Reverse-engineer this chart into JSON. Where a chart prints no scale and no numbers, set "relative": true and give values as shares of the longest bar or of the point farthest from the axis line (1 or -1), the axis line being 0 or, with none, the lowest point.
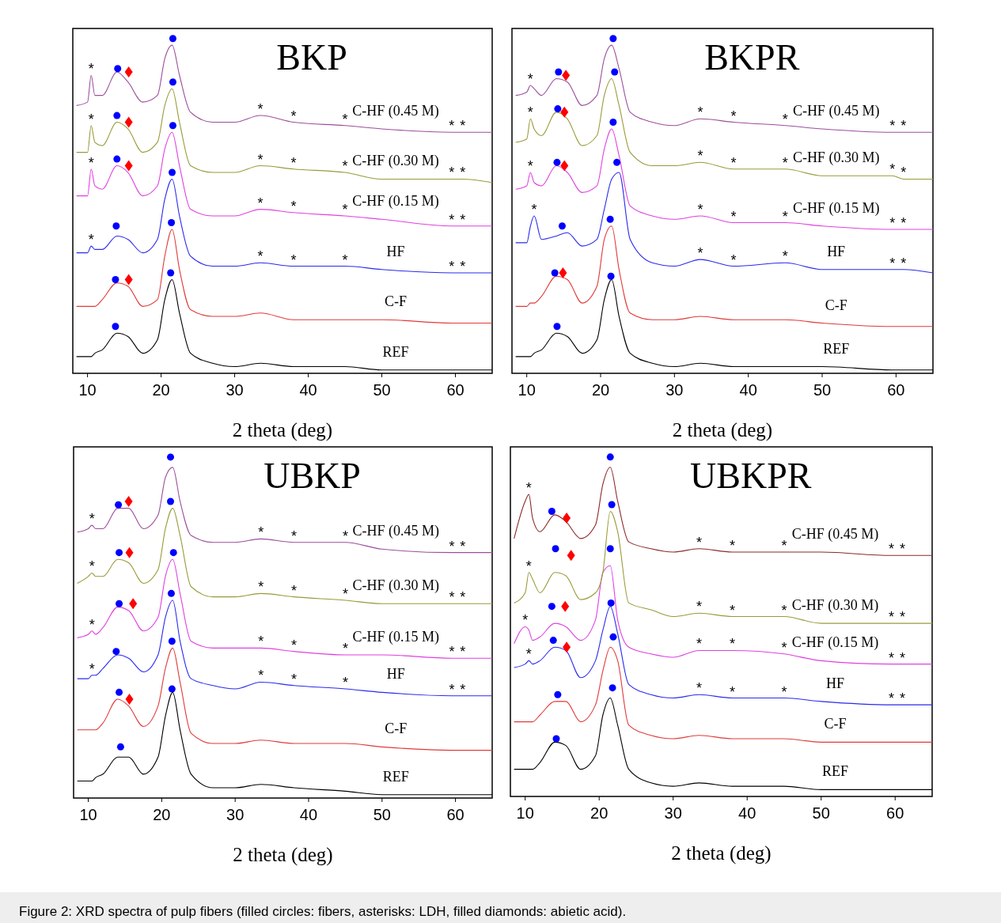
{
  "chart_data": [
    {
      "type": "line",
      "title": "BKP",
      "xlabel": "2 theta (deg)",
      "relative": true,
      "xlim": [
        8,
        65
      ],
      "xticks": [
        10,
        20,
        30,
        40,
        50,
        60
      ],
      "x": [
        8.5,
        10,
        10.5,
        11,
        12,
        14,
        15.5,
        17.5,
        19.5,
        20.5,
        21.5,
        22.5,
        24,
        27,
        30,
        33.5,
        38,
        45,
        50,
        59.5,
        61,
        65
      ],
      "series": [
        {
          "name": "REF",
          "color": "#000000",
          "values": [
            0.05,
            0.05,
            0.05,
            0.06,
            0.07,
            0.12,
            0.11,
            0.06,
            0.1,
            0.22,
            0.28,
            0.18,
            0.06,
            0.03,
            0.02,
            0.03,
            0.02,
            0.02,
            0.01,
            0.01,
            0.01,
            0.01
          ]
        },
        {
          "name": "C-F",
          "color": "#e03a3a",
          "values": [
            0.2,
            0.2,
            0.2,
            0.2,
            0.22,
            0.27,
            0.26,
            0.2,
            0.22,
            0.35,
            0.43,
            0.31,
            0.19,
            0.17,
            0.17,
            0.18,
            0.16,
            0.16,
            0.16,
            0.15,
            0.15,
            0.15
          ]
        },
        {
          "name": "HF",
          "color": "#2a2aee",
          "values": [
            0.36,
            0.36,
            0.38,
            0.37,
            0.37,
            0.41,
            0.4,
            0.36,
            0.4,
            0.52,
            0.58,
            0.47,
            0.35,
            0.32,
            0.32,
            0.33,
            0.32,
            0.32,
            0.31,
            0.3,
            0.3,
            0.3
          ]
        },
        {
          "name": "C-HF (0.15 M)",
          "color": "#e040e0",
          "values": [
            0.53,
            0.53,
            0.61,
            0.56,
            0.55,
            0.62,
            0.6,
            0.53,
            0.56,
            0.67,
            0.72,
            0.62,
            0.49,
            0.47,
            0.47,
            0.49,
            0.48,
            0.47,
            0.46,
            0.44,
            0.44,
            0.44
          ]
        },
        {
          "name": "C-HF (0.30 M)",
          "color": "#9a9a3a",
          "values": [
            0.66,
            0.66,
            0.74,
            0.69,
            0.68,
            0.75,
            0.73,
            0.66,
            0.69,
            0.8,
            0.85,
            0.75,
            0.62,
            0.6,
            0.6,
            0.62,
            0.61,
            0.6,
            0.58,
            0.58,
            0.58,
            0.57
          ]
        },
        {
          "name": "C-HF (0.45 M)",
          "color": "#9b4f9b",
          "values": [
            0.8,
            0.81,
            0.89,
            0.83,
            0.83,
            0.9,
            0.87,
            0.81,
            0.83,
            0.94,
            0.98,
            0.89,
            0.78,
            0.75,
            0.75,
            0.77,
            0.75,
            0.74,
            0.73,
            0.72,
            0.72,
            0.72
          ]
        },
        {
          "type": "scatter",
          "marker": "circle",
          "color": "#0000ff",
          "x": [
            14.1,
            21.6,
            21.6,
            14,
            21.6,
            14,
            21.5,
            13.9,
            21.4,
            13.8,
            21.3,
            13.8
          ],
          "values": [
            0.91,
            1.0,
            0.87,
            0.77,
            0.74,
            0.64,
            0.6,
            0.44,
            0.45,
            0.28,
            0.3,
            0.14
          ]
        },
        {
          "type": "scatter",
          "marker": "diamond",
          "color": "#ff0000",
          "x": [
            15.6,
            15.6,
            15.6,
            15.6
          ],
          "values": [
            0.9,
            0.75,
            0.62,
            0.28
          ]
        }
      ],
      "annotations": [
        {
          "text": "*",
          "x": 10.5,
          "y": 0.89
        },
        {
          "text": "*",
          "x": 33.5,
          "y": 0.77
        },
        {
          "text": "*",
          "x": 38,
          "y": 0.75
        },
        {
          "text": "*",
          "x": 45,
          "y": 0.74
        },
        {
          "text": "*",
          "x": 59.5,
          "y": 0.72
        },
        {
          "text": "*",
          "x": 61,
          "y": 0.72
        },
        {
          "text": "*",
          "x": 10.5,
          "y": 0.74
        },
        {
          "text": "*",
          "x": 33.5,
          "y": 0.62
        },
        {
          "text": "*",
          "x": 38,
          "y": 0.61
        },
        {
          "text": "*",
          "x": 45,
          "y": 0.6
        },
        {
          "text": "*",
          "x": 59.5,
          "y": 0.58
        },
        {
          "text": "*",
          "x": 61,
          "y": 0.58
        },
        {
          "text": "*",
          "x": 10.5,
          "y": 0.61
        },
        {
          "text": "*",
          "x": 33.5,
          "y": 0.49
        },
        {
          "text": "*",
          "x": 38,
          "y": 0.48
        },
        {
          "text": "*",
          "x": 45,
          "y": 0.47
        },
        {
          "text": "*",
          "x": 59.5,
          "y": 0.44
        },
        {
          "text": "*",
          "x": 61,
          "y": 0.44
        },
        {
          "text": "*",
          "x": 10.5,
          "y": 0.38
        },
        {
          "text": "*",
          "x": 33.5,
          "y": 0.33
        },
        {
          "text": "*",
          "x": 38,
          "y": 0.32
        },
        {
          "text": "*",
          "x": 45,
          "y": 0.32
        },
        {
          "text": "*",
          "x": 59.5,
          "y": 0.3
        },
        {
          "text": "*",
          "x": 61,
          "y": 0.3
        }
      ]
    },
    {
      "type": "line",
      "title": "BKPR",
      "xlabel": "2 theta (deg)",
      "relative": true,
      "xlim": [
        8,
        65
      ],
      "xticks": [
        10,
        20,
        30,
        40,
        50,
        60
      ],
      "x": [
        8.5,
        10,
        10.5,
        11,
        12,
        14,
        15.5,
        17.5,
        19.5,
        20.5,
        21.5,
        22.5,
        24,
        27,
        30,
        33.5,
        38,
        45,
        50,
        59.5,
        61,
        65
      ],
      "series": [
        {
          "name": "REF",
          "color": "#000000",
          "values": [
            0.05,
            0.05,
            0.05,
            0.06,
            0.07,
            0.12,
            0.11,
            0.06,
            0.1,
            0.22,
            0.28,
            0.17,
            0.06,
            0.03,
            0.02,
            0.03,
            0.02,
            0.02,
            0.02,
            0.01,
            0.01,
            0.01
          ]
        },
        {
          "name": "C-F",
          "color": "#e03a3a",
          "values": [
            0.2,
            0.2,
            0.21,
            0.21,
            0.23,
            0.29,
            0.28,
            0.21,
            0.26,
            0.4,
            0.44,
            0.31,
            0.18,
            0.16,
            0.16,
            0.17,
            0.16,
            0.16,
            0.15,
            0.14,
            0.14,
            0.14
          ]
        },
        {
          "name": "HF",
          "color": "#2a2aee",
          "values": [
            0.39,
            0.39,
            0.44,
            0.47,
            0.4,
            0.41,
            0.42,
            0.38,
            0.4,
            0.49,
            0.58,
            0.6,
            0.4,
            0.33,
            0.32,
            0.34,
            0.32,
            0.33,
            0.31,
            0.31,
            0.31,
            0.3
          ]
        },
        {
          "name": "C-HF (0.15 M)",
          "color": "#e040e0",
          "values": [
            0.55,
            0.56,
            0.6,
            0.57,
            0.56,
            0.62,
            0.6,
            0.54,
            0.56,
            0.67,
            0.73,
            0.65,
            0.5,
            0.47,
            0.46,
            0.47,
            0.45,
            0.45,
            0.44,
            0.43,
            0.43,
            0.43
          ]
        },
        {
          "name": "C-HF (0.30 M)",
          "color": "#9a9a3a",
          "values": [
            0.69,
            0.7,
            0.76,
            0.73,
            0.71,
            0.78,
            0.76,
            0.68,
            0.71,
            0.83,
            0.88,
            0.8,
            0.66,
            0.62,
            0.62,
            0.63,
            0.61,
            0.61,
            0.59,
            0.59,
            0.58,
            0.58
          ]
        },
        {
          "name": "C-HF (0.45 M)",
          "color": "#9b4f9b",
          "values": [
            0.83,
            0.84,
            0.86,
            0.85,
            0.83,
            0.88,
            0.87,
            0.8,
            0.83,
            0.94,
            0.98,
            0.91,
            0.78,
            0.75,
            0.74,
            0.76,
            0.75,
            0.74,
            0.73,
            0.72,
            0.72,
            0.72
          ]
        },
        {
          "type": "scatter",
          "marker": "circle",
          "color": "#0000ff",
          "x": [
            14.3,
            21.7,
            21.9,
            14.2,
            21.7,
            14.1,
            22.2,
            14.8,
            21.3,
            13.8,
            21.4,
            14.1
          ],
          "values": [
            0.9,
            1.0,
            0.9,
            0.79,
            0.75,
            0.63,
            0.63,
            0.44,
            0.46,
            0.3,
            0.29,
            0.14
          ]
        },
        {
          "type": "scatter",
          "marker": "diamond",
          "color": "#ff0000",
          "x": [
            15.3,
            15.1,
            15.1,
            14.9
          ],
          "values": [
            0.89,
            0.78,
            0.62,
            0.3
          ]
        }
      ],
      "annotations": [
        {
          "text": "*",
          "x": 10.5,
          "y": 0.86
        },
        {
          "text": "*",
          "x": 33.5,
          "y": 0.76
        },
        {
          "text": "*",
          "x": 38,
          "y": 0.75
        },
        {
          "text": "*",
          "x": 45,
          "y": 0.74
        },
        {
          "text": "*",
          "x": 59.5,
          "y": 0.72
        },
        {
          "text": "*",
          "x": 61,
          "y": 0.72
        },
        {
          "text": "*",
          "x": 10.5,
          "y": 0.76
        },
        {
          "text": "*",
          "x": 33.5,
          "y": 0.63
        },
        {
          "text": "*",
          "x": 38,
          "y": 0.61
        },
        {
          "text": "*",
          "x": 45,
          "y": 0.61
        },
        {
          "text": "*",
          "x": 59.5,
          "y": 0.59
        },
        {
          "text": "*",
          "x": 61,
          "y": 0.58
        },
        {
          "text": "*",
          "x": 10.5,
          "y": 0.6
        },
        {
          "text": "*",
          "x": 33.5,
          "y": 0.47
        },
        {
          "text": "*",
          "x": 38,
          "y": 0.45
        },
        {
          "text": "*",
          "x": 45,
          "y": 0.45
        },
        {
          "text": "*",
          "x": 59.5,
          "y": 0.43
        },
        {
          "text": "*",
          "x": 61,
          "y": 0.43
        },
        {
          "text": "*",
          "x": 11,
          "y": 0.47
        },
        {
          "text": "*",
          "x": 33.5,
          "y": 0.34
        },
        {
          "text": "*",
          "x": 38,
          "y": 0.32
        },
        {
          "text": "*",
          "x": 45,
          "y": 0.33
        },
        {
          "text": "*",
          "x": 59.5,
          "y": 0.31
        },
        {
          "text": "*",
          "x": 61,
          "y": 0.31
        }
      ]
    },
    {
      "type": "line",
      "title": "UBKP",
      "xlabel": "2 theta (deg)",
      "relative": true,
      "xlim": [
        8,
        65
      ],
      "xticks": [
        10,
        20,
        30,
        40,
        50,
        60
      ],
      "x": [
        8.5,
        10,
        10.5,
        11,
        12,
        14,
        15.5,
        17.5,
        19.5,
        20.5,
        21.5,
        22.5,
        24,
        27,
        30,
        33.5,
        38,
        45,
        50,
        59.5,
        61,
        65
      ],
      "series": [
        {
          "name": "REF",
          "color": "#000000",
          "values": [
            0.05,
            0.05,
            0.05,
            0.06,
            0.07,
            0.12,
            0.12,
            0.07,
            0.12,
            0.24,
            0.31,
            0.2,
            0.07,
            0.03,
            0.03,
            0.04,
            0.03,
            0.02,
            0.01,
            0.01,
            0.01,
            0.01
          ]
        },
        {
          "name": "C-F",
          "color": "#e03a3a",
          "values": [
            0.2,
            0.2,
            0.2,
            0.2,
            0.22,
            0.29,
            0.27,
            0.21,
            0.27,
            0.38,
            0.44,
            0.34,
            0.19,
            0.16,
            0.16,
            0.17,
            0.16,
            0.16,
            0.15,
            0.14,
            0.14,
            0.14
          ]
        },
        {
          "name": "HF",
          "color": "#2a2aee",
          "values": [
            0.35,
            0.35,
            0.36,
            0.36,
            0.38,
            0.42,
            0.41,
            0.37,
            0.42,
            0.53,
            0.58,
            0.46,
            0.35,
            0.33,
            0.32,
            0.34,
            0.33,
            0.32,
            0.31,
            0.3,
            0.3,
            0.3
          ]
        },
        {
          "name": "C-HF (0.15 M)",
          "color": "#e040e0",
          "values": [
            0.47,
            0.48,
            0.49,
            0.48,
            0.5,
            0.56,
            0.55,
            0.49,
            0.53,
            0.65,
            0.7,
            0.6,
            0.46,
            0.44,
            0.44,
            0.44,
            0.43,
            0.42,
            0.42,
            0.41,
            0.41,
            0.41
          ]
        },
        {
          "name": "C-HF (0.30 M)",
          "color": "#9a9a3a",
          "values": [
            0.63,
            0.65,
            0.66,
            0.65,
            0.65,
            0.7,
            0.69,
            0.63,
            0.67,
            0.79,
            0.85,
            0.77,
            0.62,
            0.59,
            0.59,
            0.6,
            0.59,
            0.58,
            0.57,
            0.57,
            0.57,
            0.57
          ]
        },
        {
          "name": "C-HF (0.45 M)",
          "color": "#9b4f9b",
          "values": [
            0.78,
            0.79,
            0.8,
            0.79,
            0.79,
            0.85,
            0.85,
            0.79,
            0.83,
            0.94,
            0.97,
            0.87,
            0.77,
            0.75,
            0.75,
            0.76,
            0.75,
            0.75,
            0.73,
            0.72,
            0.72,
            0.72
          ]
        },
        {
          "type": "scatter",
          "marker": "circle",
          "color": "#0000ff",
          "x": [
            21.2,
            14.1,
            21.2,
            14.2,
            21.6,
            14.2,
            21.3,
            13.8,
            21.4,
            14.2,
            21.4,
            14.4
          ],
          "values": [
            1.0,
            0.86,
            0.87,
            0.72,
            0.72,
            0.57,
            0.6,
            0.43,
            0.46,
            0.31,
            0.32,
            0.15
          ]
        },
        {
          "type": "scatter",
          "marker": "diamond",
          "color": "#ff0000",
          "x": [
            15.5,
            15.6,
            16.1,
            15.6
          ],
          "values": [
            0.87,
            0.72,
            0.57,
            0.29
          ]
        }
      ],
      "annotations": [
        {
          "text": "*",
          "x": 10.5,
          "y": 0.8
        },
        {
          "text": "*",
          "x": 33.5,
          "y": 0.76
        },
        {
          "text": "*",
          "x": 38,
          "y": 0.75
        },
        {
          "text": "*",
          "x": 45,
          "y": 0.75
        },
        {
          "text": "*",
          "x": 59.5,
          "y": 0.72
        },
        {
          "text": "*",
          "x": 61,
          "y": 0.72
        },
        {
          "text": "*",
          "x": 10.5,
          "y": 0.66
        },
        {
          "text": "*",
          "x": 33.5,
          "y": 0.6
        },
        {
          "text": "*",
          "x": 38,
          "y": 0.59
        },
        {
          "text": "*",
          "x": 45,
          "y": 0.58
        },
        {
          "text": "*",
          "x": 59.5,
          "y": 0.57
        },
        {
          "text": "*",
          "x": 61,
          "y": 0.57
        },
        {
          "text": "*",
          "x": 10.5,
          "y": 0.49
        },
        {
          "text": "*",
          "x": 33.5,
          "y": 0.44
        },
        {
          "text": "*",
          "x": 38,
          "y": 0.43
        },
        {
          "text": "*",
          "x": 45,
          "y": 0.42
        },
        {
          "text": "*",
          "x": 59.5,
          "y": 0.41
        },
        {
          "text": "*",
          "x": 61,
          "y": 0.41
        },
        {
          "text": "*",
          "x": 10.5,
          "y": 0.36
        },
        {
          "text": "*",
          "x": 33.5,
          "y": 0.34
        },
        {
          "text": "*",
          "x": 38,
          "y": 0.33
        },
        {
          "text": "*",
          "x": 45,
          "y": 0.32
        },
        {
          "text": "*",
          "x": 59.5,
          "y": 0.3
        },
        {
          "text": "*",
          "x": 61,
          "y": 0.3
        }
      ]
    },
    {
      "type": "line",
      "title": "UBKPR",
      "xlabel": "2 theta (deg)",
      "relative": true,
      "xlim": [
        8,
        65
      ],
      "xticks": [
        10,
        20,
        30,
        40,
        50,
        60
      ],
      "x": [
        8.5,
        10,
        10.5,
        11,
        12,
        14,
        15.5,
        17.5,
        19.5,
        20.5,
        21.5,
        22.5,
        24,
        27,
        30,
        33.5,
        38,
        45,
        50,
        59.5,
        61,
        65
      ],
      "series": [
        {
          "name": "REF",
          "color": "#000000",
          "values": [
            0.08,
            0.08,
            0.08,
            0.08,
            0.1,
            0.16,
            0.15,
            0.08,
            0.12,
            0.24,
            0.29,
            0.21,
            0.08,
            0.04,
            0.03,
            0.04,
            0.03,
            0.03,
            0.02,
            0.02,
            0.02,
            0.02
          ]
        },
        {
          "name": "C-F",
          "color": "#e03a3a",
          "values": [
            0.22,
            0.22,
            0.22,
            0.22,
            0.24,
            0.28,
            0.28,
            0.22,
            0.27,
            0.37,
            0.44,
            0.4,
            0.21,
            0.18,
            0.17,
            0.18,
            0.17,
            0.17,
            0.16,
            0.16,
            0.16,
            0.16
          ]
        },
        {
          "name": "HF",
          "color": "#2a2aee",
          "values": [
            0.38,
            0.39,
            0.4,
            0.39,
            0.4,
            0.44,
            0.43,
            0.35,
            0.4,
            0.49,
            0.56,
            0.48,
            0.33,
            0.3,
            0.29,
            0.3,
            0.29,
            0.29,
            0.28,
            0.27,
            0.27,
            0.27
          ]
        },
        {
          "name": "C-HF (0.15 M)",
          "color": "#e040e0",
          "values": [
            0.45,
            0.5,
            0.49,
            0.46,
            0.47,
            0.51,
            0.5,
            0.46,
            0.52,
            0.66,
            0.68,
            0.52,
            0.44,
            0.42,
            0.41,
            0.43,
            0.43,
            0.42,
            0.4,
            0.39,
            0.39,
            0.39
          ]
        },
        {
          "name": "C-HF (0.30 M)",
          "color": "#9a9a3a",
          "values": [
            0.57,
            0.6,
            0.66,
            0.64,
            0.6,
            0.66,
            0.65,
            0.58,
            0.6,
            0.66,
            0.84,
            0.78,
            0.57,
            0.55,
            0.53,
            0.54,
            0.53,
            0.53,
            0.51,
            0.51,
            0.51,
            0.51
          ]
        },
        {
          "name": "C-HF (0.45 M)",
          "color": "#8b2a2a",
          "values": [
            0.76,
            0.87,
            0.89,
            0.82,
            0.78,
            0.83,
            0.81,
            0.76,
            0.8,
            0.92,
            0.97,
            0.87,
            0.75,
            0.73,
            0.72,
            0.73,
            0.72,
            0.72,
            0.72,
            0.71,
            0.71,
            0.71
          ]
        },
        {
          "type": "scatter",
          "marker": "circle",
          "color": "#0000ff",
          "x": [
            21.5,
            13.6,
            21.7,
            14.1,
            21.5,
            13.6,
            21.6,
            13.8,
            21.9,
            14.4,
            21.8,
            14.2
          ],
          "values": [
            1.0,
            0.84,
            0.86,
            0.73,
            0.73,
            0.56,
            0.57,
            0.46,
            0.47,
            0.3,
            0.32,
            0.17
          ]
        },
        {
          "type": "scatter",
          "marker": "diamond",
          "color": "#ff0000",
          "x": [
            15.6,
            16.2,
            15.4,
            15.6
          ],
          "values": [
            0.82,
            0.71,
            0.56,
            0.44
          ]
        }
      ],
      "annotations": [
        {
          "text": "*",
          "x": 10.5,
          "y": 0.89
        },
        {
          "text": "*",
          "x": 33.5,
          "y": 0.73
        },
        {
          "text": "*",
          "x": 38,
          "y": 0.72
        },
        {
          "text": "*",
          "x": 45,
          "y": 0.72
        },
        {
          "text": "*",
          "x": 59.5,
          "y": 0.71
        },
        {
          "text": "*",
          "x": 61,
          "y": 0.71
        },
        {
          "text": "*",
          "x": 10.5,
          "y": 0.66
        },
        {
          "text": "*",
          "x": 33.5,
          "y": 0.54
        },
        {
          "text": "*",
          "x": 38,
          "y": 0.53
        },
        {
          "text": "*",
          "x": 45,
          "y": 0.53
        },
        {
          "text": "*",
          "x": 59.5,
          "y": 0.51
        },
        {
          "text": "*",
          "x": 61,
          "y": 0.51
        },
        {
          "text": "*",
          "x": 10,
          "y": 0.5
        },
        {
          "text": "*",
          "x": 33.5,
          "y": 0.43
        },
        {
          "text": "*",
          "x": 38,
          "y": 0.43
        },
        {
          "text": "*",
          "x": 45,
          "y": 0.42
        },
        {
          "text": "*",
          "x": 59.5,
          "y": 0.39
        },
        {
          "text": "*",
          "x": 61,
          "y": 0.39
        },
        {
          "text": "*",
          "x": 10.5,
          "y": 0.4
        },
        {
          "text": "*",
          "x": 33.5,
          "y": 0.3
        },
        {
          "text": "*",
          "x": 38,
          "y": 0.29
        },
        {
          "text": "*",
          "x": 45,
          "y": 0.29
        },
        {
          "text": "*",
          "x": 59.5,
          "y": 0.27
        },
        {
          "text": "*",
          "x": 61,
          "y": 0.27
        }
      ]
    },
    {
      "type": "other",
      "annotations": [
        "Figure 2: XRD spectra of pulp fibers (filled circles: fibers, asterisks: LDH, filled diamonds: abietic acid)."
      ]
    }
  ]
}
